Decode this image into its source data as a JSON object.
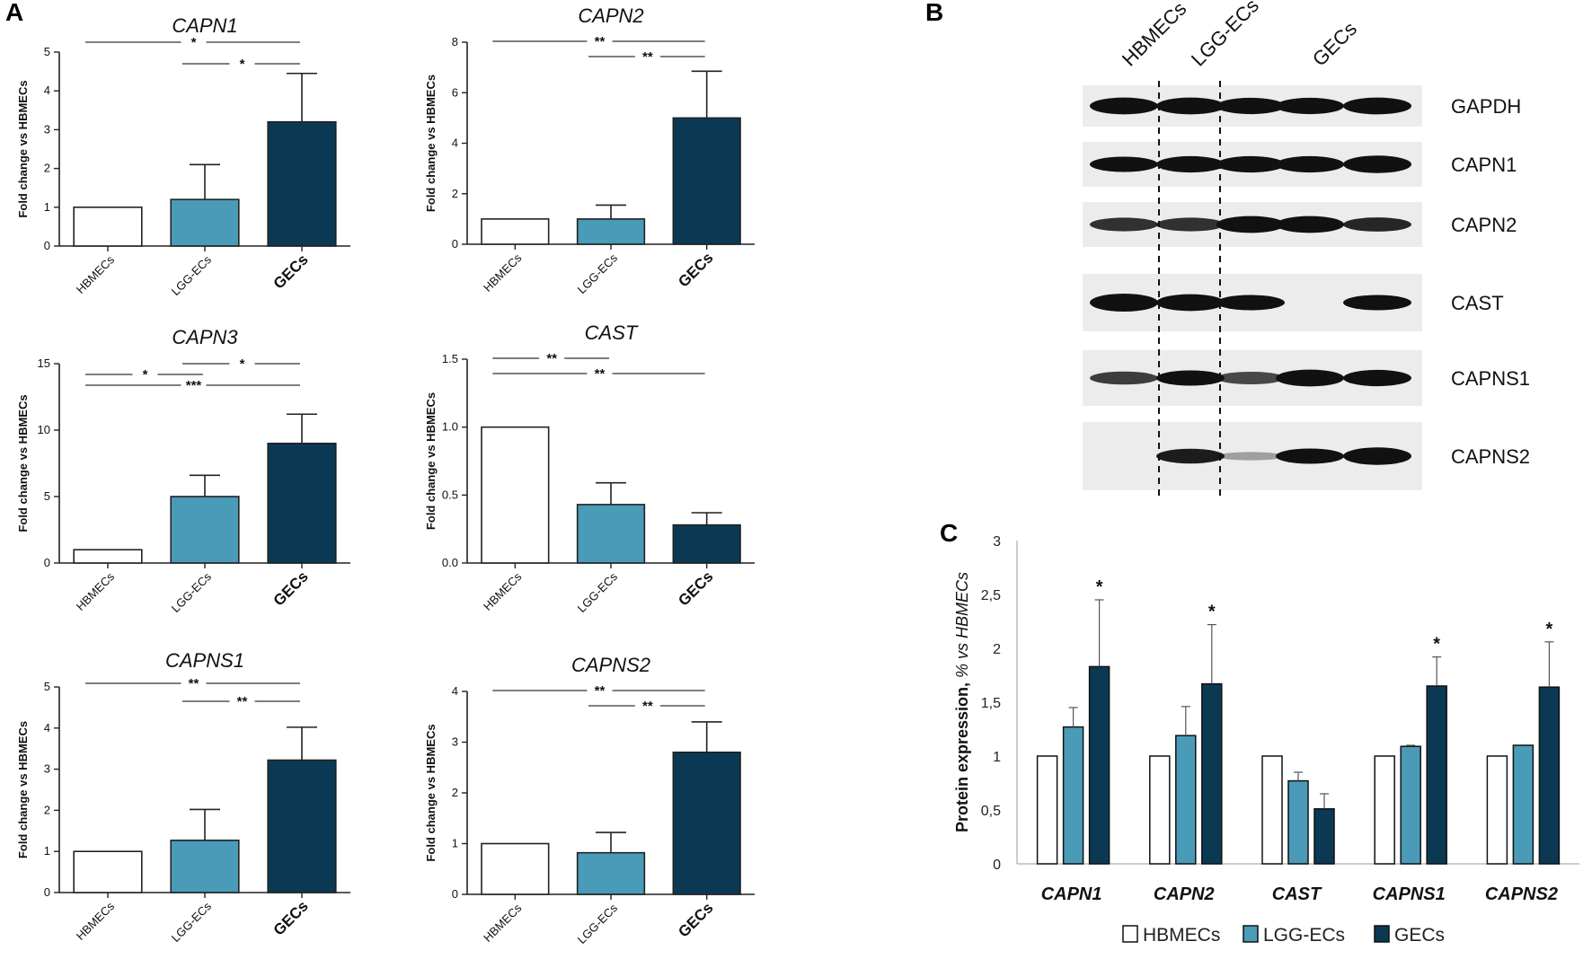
{
  "panel_letters": {
    "a": "A",
    "b": "B",
    "c": "C"
  },
  "colors": {
    "hbmecs": "#ffffff",
    "lgg": "#4a9bb8",
    "gecs": "#0b3954",
    "axis": "#222222"
  },
  "chart_data": [
    {
      "id": "capn1",
      "type": "bar",
      "title": "CAPN1",
      "ylabel": "Fold change vs HBMECs",
      "ylim": [
        0,
        5
      ],
      "yticks": [
        0,
        1,
        2,
        3,
        4,
        5
      ],
      "ytick_labels": [
        "0",
        "1",
        "2",
        "3",
        "4",
        "5"
      ],
      "categories": [
        "HBMECs",
        "LGG-ECs",
        "GECs"
      ],
      "values": [
        1.0,
        1.2,
        3.2
      ],
      "errors": [
        0,
        0.9,
        1.25
      ],
      "significance": [
        {
          "from": 0,
          "to": 2,
          "label": "*"
        },
        {
          "from": 1,
          "to": 2,
          "label": "*"
        }
      ]
    },
    {
      "id": "capn2",
      "type": "bar",
      "title": "CAPN2",
      "ylabel": "Fold change vs HBMECs",
      "ylim": [
        0,
        8
      ],
      "yticks": [
        0,
        2,
        4,
        6,
        8
      ],
      "ytick_labels": [
        "0",
        "2",
        "4",
        "6",
        "8"
      ],
      "categories": [
        "HBMECs",
        "LGG-ECs",
        "GECs"
      ],
      "values": [
        1.0,
        1.0,
        5.0
      ],
      "errors": [
        0,
        0.55,
        1.85
      ],
      "significance": [
        {
          "from": 0,
          "to": 2,
          "label": "**"
        },
        {
          "from": 1,
          "to": 2,
          "label": "**"
        }
      ]
    },
    {
      "id": "capn3",
      "type": "bar",
      "title": "CAPN3",
      "ylabel": "Fold change vs HBMECs",
      "ylim": [
        0,
        15
      ],
      "yticks": [
        0,
        5,
        10,
        15
      ],
      "ytick_labels": [
        "0",
        "5",
        "10",
        "15"
      ],
      "categories": [
        "HBMECs",
        "LGG-ECs",
        "GECs"
      ],
      "values": [
        1.0,
        5.0,
        9.0
      ],
      "errors": [
        0,
        1.6,
        2.2
      ],
      "significance": [
        {
          "from": 0,
          "to": 1,
          "label": "*"
        },
        {
          "from": 0,
          "to": 2,
          "label": "***"
        },
        {
          "from": 1,
          "to": 2,
          "label": "*"
        }
      ]
    },
    {
      "id": "cast",
      "type": "bar",
      "title": "CAST",
      "ylabel": "Fold change vs HBMECs",
      "ylim": [
        0,
        1.5
      ],
      "yticks": [
        0,
        0.5,
        1.0,
        1.5
      ],
      "ytick_labels": [
        "0.0",
        "0.5",
        "1.0",
        "1.5"
      ],
      "categories": [
        "HBMECs",
        "LGG-ECs",
        "GECs"
      ],
      "values": [
        1.0,
        0.43,
        0.28
      ],
      "errors": [
        0,
        0.16,
        0.09
      ],
      "significance": [
        {
          "from": 0,
          "to": 1,
          "label": "**"
        },
        {
          "from": 0,
          "to": 2,
          "label": "**"
        }
      ]
    },
    {
      "id": "capns1",
      "type": "bar",
      "title": "CAPNS1",
      "ylabel": "Fold change vs HBMECs",
      "ylim": [
        0,
        5
      ],
      "yticks": [
        0,
        1,
        2,
        3,
        4,
        5
      ],
      "ytick_labels": [
        "0",
        "1",
        "2",
        "3",
        "4",
        "5"
      ],
      "categories": [
        "HBMECs",
        "LGG-ECs",
        "GECs"
      ],
      "values": [
        1.0,
        1.27,
        3.22
      ],
      "errors": [
        0,
        0.75,
        0.8
      ],
      "significance": [
        {
          "from": 1,
          "to": 2,
          "label": "**"
        },
        {
          "from": 0,
          "to": 2,
          "label": "**"
        }
      ]
    },
    {
      "id": "capns2",
      "type": "bar",
      "title": "CAPNS2",
      "ylabel": "Fold change vs HBMECs",
      "ylim": [
        0,
        4
      ],
      "yticks": [
        0,
        1,
        2,
        3,
        4
      ],
      "ytick_labels": [
        "0",
        "1",
        "2",
        "3",
        "4"
      ],
      "categories": [
        "HBMECs",
        "LGG-ECs",
        "GECs"
      ],
      "values": [
        1.0,
        0.82,
        2.8
      ],
      "errors": [
        0,
        0.4,
        0.6
      ],
      "significance": [
        {
          "from": 0,
          "to": 2,
          "label": "**"
        },
        {
          "from": 1,
          "to": 2,
          "label": "**"
        }
      ]
    },
    {
      "id": "protein",
      "type": "bar",
      "title": "",
      "ylabel_main": "Protein expression, ",
      "ylabel_italic": "% vs HBMECs",
      "ylim": [
        0,
        3
      ],
      "yticks": [
        0,
        0.5,
        1,
        1.5,
        2,
        2.5,
        3
      ],
      "ytick_labels": [
        "0",
        "0,5",
        "1",
        "1,5",
        "2",
        "2,5",
        "3"
      ],
      "categories": [
        "CAPN1",
        "CAPN2",
        "CAST",
        "CAPNS1",
        "CAPNS2"
      ],
      "series": [
        {
          "name": "HBMECs",
          "values": [
            1.0,
            1.0,
            1.0,
            1.0,
            1.0
          ],
          "errors": [
            0,
            0,
            0,
            0,
            0
          ]
        },
        {
          "name": "LGG-ECs",
          "values": [
            1.27,
            1.19,
            0.77,
            1.09,
            1.1
          ],
          "errors": [
            0.18,
            0.27,
            0.08,
            0.01,
            0
          ]
        },
        {
          "name": "GECs",
          "values": [
            1.83,
            1.67,
            0.51,
            1.65,
            1.64
          ],
          "errors": [
            0.62,
            0.55,
            0.14,
            0.27,
            0.42
          ]
        }
      ],
      "significance_labels": [
        "*",
        "*",
        "",
        "*",
        "*"
      ],
      "legend": [
        "HBMECs",
        "LGG-ECs",
        "GECs"
      ],
      "legend_position": "bottom"
    }
  ],
  "western_blot": {
    "lanes": [
      "HBMECs",
      "LGG-ECs",
      "GECs"
    ],
    "proteins": [
      {
        "name": "GAPDH",
        "intensities": [
          0.9,
          0.9,
          0.85,
          0.85,
          0.9
        ]
      },
      {
        "name": "CAPN1",
        "intensities": [
          0.75,
          0.85,
          0.85,
          0.85,
          0.95
        ]
      },
      {
        "name": "CAPN2",
        "intensities": [
          0.6,
          0.6,
          0.9,
          0.9,
          0.65
        ]
      },
      {
        "name": "CAST",
        "intensities": [
          1.0,
          0.9,
          0.75,
          0.05,
          0.75
        ]
      },
      {
        "name": "CAPNS1",
        "intensities": [
          0.55,
          0.75,
          0.5,
          0.9,
          0.85
        ]
      },
      {
        "name": "CAPNS2",
        "intensities": [
          0.05,
          0.7,
          0.1,
          0.75,
          0.95
        ]
      }
    ]
  }
}
